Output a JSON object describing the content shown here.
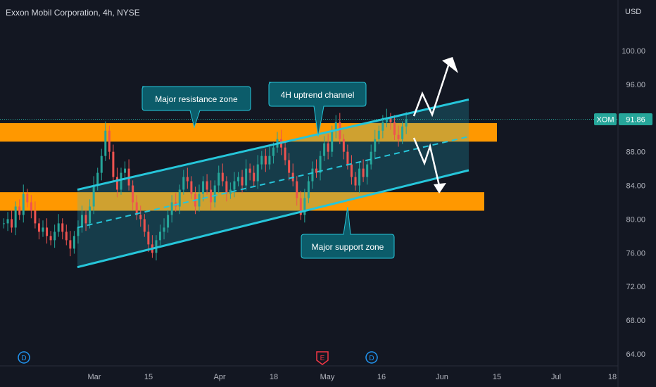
{
  "header": {
    "title": "Exxon Mobil Corporation, 4h, NYSE"
  },
  "price_axis": {
    "currency": "USD",
    "ticker": "XOM",
    "last_price": "91.86",
    "last_price_value": 91.86
  },
  "annotations": {
    "resistance": "Major resistance zone",
    "channel": "4H uptrend channel",
    "support": "Major support zone"
  },
  "event_markers": [
    "D",
    "E",
    "D"
  ],
  "colors": {
    "background": "#131722",
    "zone": "#ff9800",
    "channel_line": "#26c6da",
    "bull": "#26a69a",
    "bear": "#ef5350",
    "label_bg": "#0c5c6a",
    "ticker_badge": "#26a69a"
  },
  "chart_data": {
    "type": "candlestick",
    "title": "Exxon Mobil Corporation, 4h, NYSE",
    "y_ticks": [
      "64.00",
      "68.00",
      "72.00",
      "76.00",
      "80.00",
      "84.00",
      "88.00",
      "92.00",
      "96.00",
      "100.00"
    ],
    "x_ticks": [
      "Mar",
      "15",
      "Apr",
      "18",
      "May",
      "16",
      "Jun",
      "15",
      "Jul",
      "18"
    ],
    "ylim": [
      62,
      104
    ],
    "zones": [
      {
        "name": "Major resistance zone",
        "low": 89.2,
        "high": 91.4
      },
      {
        "name": "Major support zone",
        "low": 81.0,
        "high": 83.2
      }
    ],
    "channel": {
      "name": "4H uptrend channel",
      "upper": [
        [
          84,
          83.5
        ],
        [
          92,
          94.2
        ]
      ],
      "mid": [
        [
          80,
          79.0
        ],
        [
          92,
          89.8
        ]
      ],
      "lower": [
        [
          76,
          74.3
        ],
        [
          92,
          85.8
        ]
      ]
    },
    "price_path": [
      [
        79.5,
        80.0,
        79.0,
        81.5,
        80.5,
        83.0,
        82.0,
        81.0,
        79.5,
        78.5,
        79.0,
        78.0,
        77.5,
        78.5,
        79.5,
        78.5,
        77.5,
        76.5,
        78.0,
        79.0,
        80.5,
        79.5,
        81.5,
        84.0,
        85.5,
        87.5,
        90.5,
        88.0,
        85.0,
        83.5,
        85.5,
        86.0,
        84.0,
        82.0,
        80.5,
        80.0,
        78.5,
        77.0,
        76.0,
        77.5,
        78.5,
        79.0,
        80.5,
        82.0,
        81.5,
        83.5,
        85.0,
        84.5,
        83.0,
        81.5,
        83.0,
        84.5,
        83.5,
        82.0,
        84.0,
        85.5,
        84.5,
        83.0,
        83.5,
        84.5,
        85.0,
        84.0,
        86.0,
        85.5,
        84.5,
        86.5,
        87.5,
        86.5,
        87.5,
        88.5,
        89.5,
        88.5,
        87.0,
        85.5,
        84.5,
        82.5,
        80.5,
        82.5,
        84.5,
        86.0,
        85.5,
        87.5,
        89.0,
        88.0,
        90.5,
        91.5,
        89.5,
        88.0,
        86.5,
        85.0,
        84.0,
        86.0,
        85.0,
        86.5,
        88.0,
        89.5,
        90.5,
        91.5,
        92.0,
        91.5,
        90.0,
        89.5,
        91.0,
        91.86
      ]
    ]
  }
}
